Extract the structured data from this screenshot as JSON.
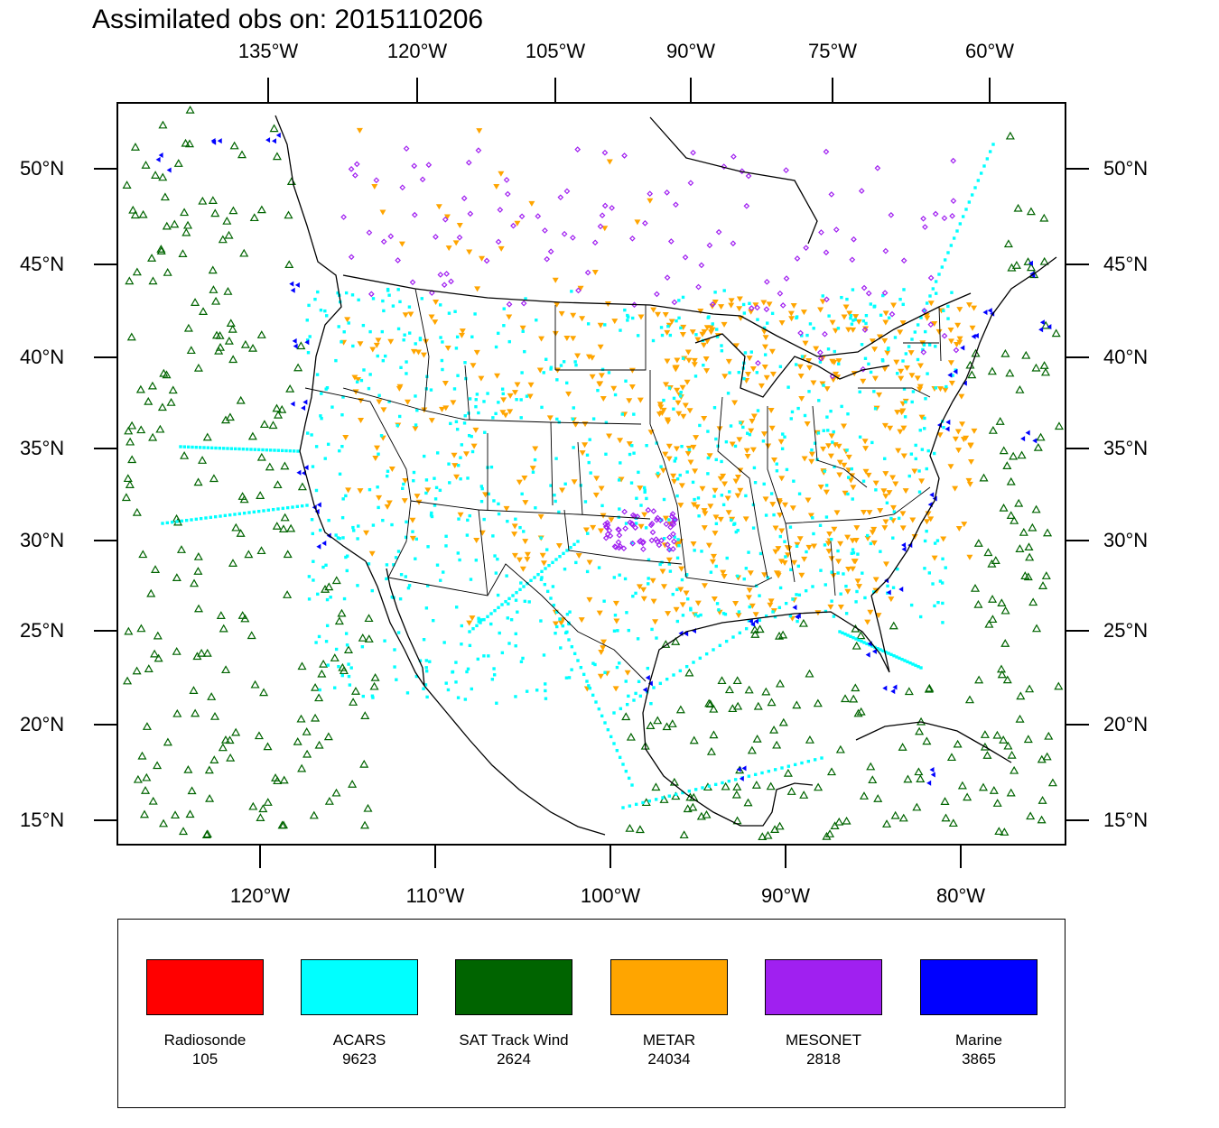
{
  "title": "Assimilated obs on: 2015110206",
  "map": {
    "top_axis": [
      "135°W",
      "120°W",
      "105°W",
      "90°W",
      "75°W",
      "60°W"
    ],
    "bottom_axis": [
      "120°W",
      "110°W",
      "100°W",
      "90°W",
      "80°W"
    ],
    "left_axis": [
      "50°N",
      "45°N",
      "40°N",
      "35°N",
      "30°N",
      "25°N",
      "20°N",
      "15°N"
    ],
    "right_axis": [
      "50°N",
      "45°N",
      "40°N",
      "35°N",
      "30°N",
      "25°N",
      "20°N",
      "15°N"
    ]
  },
  "legend": [
    {
      "name": "Radiosonde",
      "count": "105",
      "color": "#ff0000"
    },
    {
      "name": "ACARS",
      "count": "9623",
      "color": "#00ffff"
    },
    {
      "name": "SAT Track Wind",
      "count": "2624",
      "color": "#006400"
    },
    {
      "name": "METAR",
      "count": "24034",
      "color": "#ffa500"
    },
    {
      "name": "MESONET",
      "count": "2818",
      "color": "#a020f0"
    },
    {
      "name": "Marine",
      "count": "3865",
      "color": "#0000ff"
    }
  ],
  "colors": {
    "satwind": "#006400",
    "acars": "#00ffff",
    "metar": "#ffa500",
    "mesonet": "#a020f0",
    "marine": "#0000ff",
    "coast": "#000000"
  }
}
